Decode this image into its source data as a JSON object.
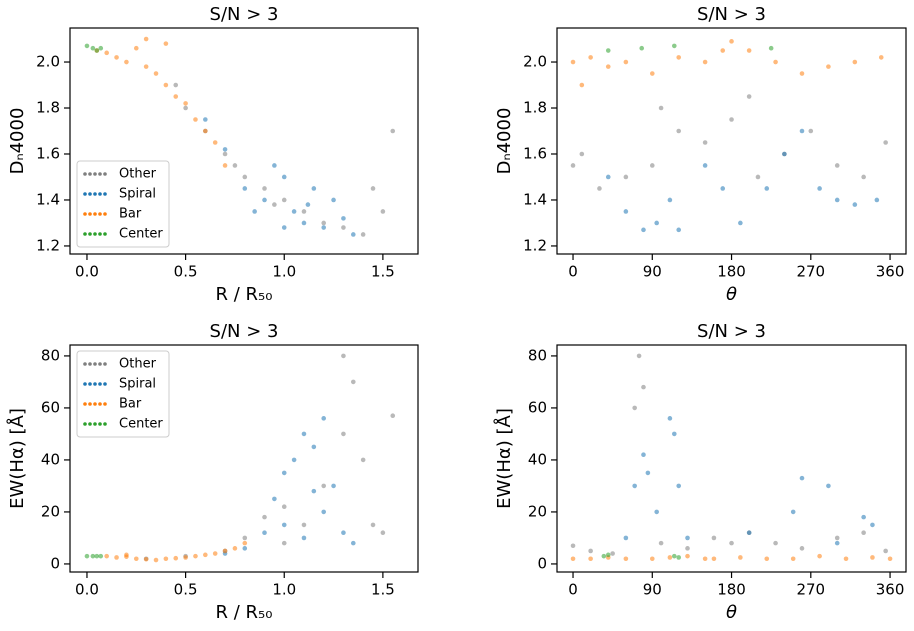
{
  "chart_data": [
    {
      "type": "scatter",
      "title": "S/N > 3",
      "xlabel": "R / R₅₀",
      "ylabel": "Dₙ4000",
      "xlim": [
        -0.086,
        1.678
      ],
      "ylim": [
        1.165,
        2.148
      ],
      "xticks": [
        {
          "value": 0,
          "label": "0.0"
        },
        0.5,
        {
          "value": 1,
          "label": "1.0"
        },
        1.5
      ],
      "yticks": [
        1.2,
        1.4,
        1.6,
        1.8,
        {
          "value": 2,
          "label": "2.0"
        }
      ],
      "legend": "lower left",
      "series": [
        {
          "name": "Other",
          "color": "#7f7f7f",
          "x": [
            0.45,
            0.6,
            0.7,
            0.8,
            0.9,
            1.0,
            1.1,
            1.2,
            1.3,
            1.4,
            1.5,
            1.55,
            0.5,
            0.75,
            0.95,
            1.45
          ],
          "values": [
            1.9,
            1.7,
            1.6,
            1.5,
            1.45,
            1.4,
            1.35,
            1.3,
            1.28,
            1.25,
            1.35,
            1.7,
            1.8,
            1.55,
            1.38,
            1.45
          ]
        },
        {
          "name": "Spiral",
          "color": "#1f77b4",
          "x": [
            0.6,
            0.7,
            0.8,
            0.9,
            0.95,
            1.0,
            1.05,
            1.1,
            1.15,
            1.2,
            1.25,
            1.3,
            0.85,
            1.0,
            1.35,
            1.12
          ],
          "values": [
            1.75,
            1.62,
            1.45,
            1.4,
            1.55,
            1.5,
            1.35,
            1.3,
            1.45,
            1.28,
            1.4,
            1.32,
            1.35,
            1.28,
            1.25,
            1.38
          ]
        },
        {
          "name": "Bar",
          "color": "#ff7f0e",
          "x": [
            0.05,
            0.1,
            0.15,
            0.2,
            0.25,
            0.3,
            0.35,
            0.4,
            0.4,
            0.45,
            0.5,
            0.55,
            0.6,
            0.65,
            0.7,
            0.3
          ],
          "values": [
            2.05,
            2.04,
            2.02,
            2.0,
            2.06,
            1.98,
            1.95,
            2.08,
            1.9,
            1.85,
            1.82,
            1.75,
            1.7,
            1.65,
            1.55,
            2.1
          ]
        },
        {
          "name": "Center",
          "color": "#2ca02c",
          "x": [
            0.0,
            0.03,
            0.05,
            0.07
          ],
          "values": [
            2.07,
            2.06,
            2.05,
            2.06
          ]
        }
      ]
    },
    {
      "type": "scatter",
      "title": "S/N > 3",
      "xlabel": "θ",
      "ylabel": "Dₙ4000",
      "xlim": [
        -18.2,
        378.1
      ],
      "ylim": [
        1.165,
        2.148
      ],
      "xticks": [
        0,
        90,
        180,
        270,
        360
      ],
      "yticks": [
        1.2,
        1.4,
        1.6,
        1.8,
        {
          "value": 2,
          "label": "2.0"
        }
      ],
      "series": [
        {
          "color": "#7f7f7f",
          "x": [
            0,
            10,
            30,
            60,
            90,
            120,
            150,
            180,
            210,
            240,
            270,
            300,
            330,
            355,
            200,
            100
          ],
          "values": [
            1.55,
            1.6,
            1.45,
            1.5,
            1.55,
            1.7,
            1.65,
            1.75,
            1.5,
            1.6,
            1.7,
            1.55,
            1.5,
            1.65,
            1.85,
            1.8
          ]
        },
        {
          "color": "#1f77b4",
          "x": [
            40,
            60,
            80,
            95,
            110,
            120,
            150,
            170,
            190,
            220,
            240,
            260,
            280,
            300,
            320,
            345
          ],
          "values": [
            1.5,
            1.35,
            1.27,
            1.3,
            1.4,
            1.27,
            1.55,
            1.45,
            1.3,
            1.45,
            1.6,
            1.7,
            1.45,
            1.4,
            1.38,
            1.4
          ]
        },
        {
          "color": "#ff7f0e",
          "x": [
            0,
            20,
            40,
            60,
            90,
            120,
            150,
            180,
            200,
            230,
            260,
            290,
            320,
            350,
            10,
            170
          ],
          "values": [
            2.0,
            2.02,
            1.98,
            2.0,
            1.95,
            2.02,
            2.0,
            2.09,
            2.05,
            2.0,
            1.95,
            1.98,
            2.0,
            2.02,
            1.9,
            2.05
          ]
        },
        {
          "color": "#2ca02c",
          "x": [
            40,
            78,
            115,
            225
          ],
          "values": [
            2.05,
            2.06,
            2.07,
            2.06
          ]
        }
      ]
    },
    {
      "type": "scatter",
      "title": "S/N > 3",
      "xlabel": "R / R₅₀",
      "ylabel": "EW(Hα) [Å]",
      "xlim": [
        -0.086,
        1.678
      ],
      "ylim": [
        -3.1,
        84.2
      ],
      "xticks": [
        {
          "value": 0,
          "label": "0.0"
        },
        0.5,
        {
          "value": 1,
          "label": "1.0"
        },
        1.5
      ],
      "yticks": [
        0,
        20,
        40,
        60,
        80
      ],
      "legend": "upper left",
      "series": [
        {
          "name": "Other",
          "color": "#7f7f7f",
          "x": [
            0.3,
            0.5,
            0.7,
            0.8,
            0.9,
            1.0,
            1.1,
            1.2,
            1.3,
            1.35,
            1.4,
            1.45,
            1.5,
            1.55,
            1.3,
            1.0
          ],
          "values": [
            2,
            3,
            5,
            10,
            18,
            22,
            15,
            30,
            50,
            70,
            40,
            15,
            12,
            57,
            80,
            8
          ]
        },
        {
          "name": "Spiral",
          "color": "#1f77b4",
          "x": [
            0.7,
            0.8,
            0.9,
            0.95,
            1.0,
            1.05,
            1.1,
            1.15,
            1.2,
            1.2,
            1.25,
            1.3,
            1.1,
            1.0,
            1.35,
            1.15
          ],
          "values": [
            4,
            6,
            12,
            25,
            35,
            40,
            50,
            45,
            56,
            20,
            30,
            12,
            10,
            15,
            8,
            28
          ]
        },
        {
          "name": "Bar",
          "color": "#ff7f0e",
          "x": [
            0.1,
            0.15,
            0.2,
            0.25,
            0.3,
            0.35,
            0.4,
            0.45,
            0.5,
            0.55,
            0.6,
            0.65,
            0.7,
            0.75,
            0.8,
            0.2
          ],
          "values": [
            3,
            2.5,
            2.8,
            2,
            1.8,
            1.5,
            2,
            2.2,
            2.5,
            3,
            3.5,
            4,
            5,
            6,
            8,
            3.5
          ]
        },
        {
          "name": "Center",
          "color": "#2ca02c",
          "x": [
            0.0,
            0.03,
            0.05,
            0.07
          ],
          "values": [
            3,
            3,
            3,
            3
          ]
        }
      ]
    },
    {
      "type": "scatter",
      "title": "S/N > 3",
      "xlabel": "θ",
      "ylabel": "EW(Hα) [Å]",
      "xlim": [
        -18.2,
        378.1
      ],
      "ylim": [
        -3.1,
        84.2
      ],
      "xticks": [
        0,
        90,
        180,
        270,
        360
      ],
      "yticks": [
        0,
        20,
        40,
        60,
        80
      ],
      "series": [
        {
          "color": "#7f7f7f",
          "x": [
            0,
            20,
            45,
            70,
            80,
            100,
            130,
            160,
            200,
            230,
            260,
            300,
            330,
            355,
            180,
            75
          ],
          "values": [
            7,
            5,
            4,
            60,
            68,
            8,
            6,
            10,
            12,
            8,
            6,
            10,
            12,
            5,
            8,
            80
          ]
        },
        {
          "color": "#1f77b4",
          "x": [
            60,
            70,
            80,
            85,
            95,
            110,
            115,
            120,
            130,
            200,
            250,
            260,
            290,
            300,
            330,
            340
          ],
          "values": [
            10,
            30,
            42,
            35,
            20,
            56,
            50,
            30,
            10,
            12,
            20,
            33,
            30,
            8,
            18,
            15
          ]
        },
        {
          "color": "#ff7f0e",
          "x": [
            0,
            20,
            40,
            60,
            90,
            110,
            130,
            160,
            190,
            220,
            250,
            280,
            310,
            340,
            360,
            150
          ],
          "values": [
            2,
            2,
            2.5,
            2,
            2,
            2.5,
            3,
            2,
            2.5,
            2,
            2,
            3,
            2,
            2.5,
            2,
            2
          ]
        },
        {
          "color": "#2ca02c",
          "x": [
            35,
            40,
            115,
            120
          ],
          "values": [
            3,
            3.5,
            3,
            2.5
          ]
        }
      ]
    }
  ]
}
